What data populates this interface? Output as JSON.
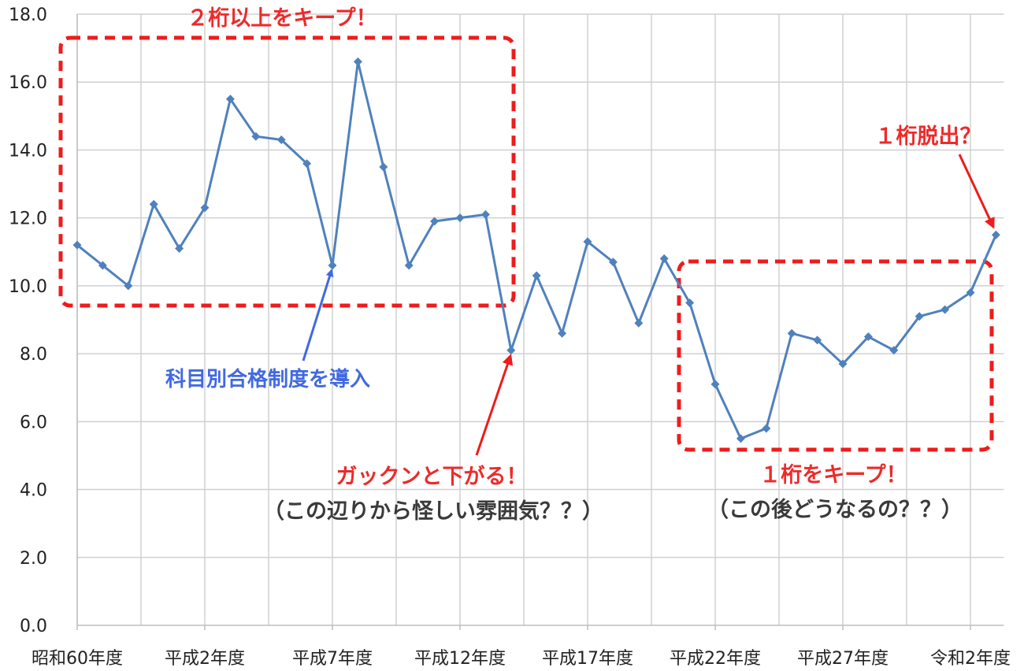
{
  "chart_data": {
    "type": "line",
    "x": [
      "昭和60年度",
      "昭和61年度",
      "昭和62年度",
      "昭和63年度",
      "平成元年度",
      "平成2年度",
      "平成3年度",
      "平成4年度",
      "平成5年度",
      "平成6年度",
      "平成7年度",
      "平成8年度",
      "平成9年度",
      "平成10年度",
      "平成11年度",
      "平成12年度",
      "平成13年度",
      "平成14年度",
      "平成15年度",
      "平成16年度",
      "平成17年度",
      "平成18年度",
      "平成19年度",
      "平成20年度",
      "平成21年度",
      "平成22年度",
      "平成23年度",
      "平成24年度",
      "平成25年度",
      "平成26年度",
      "平成27年度",
      "平成28年度",
      "平成29年度",
      "平成30年度",
      "令和元年度",
      "令和2年度",
      "令和3年度"
    ],
    "series": [
      {
        "color": "#4f81bd",
        "values": [
          11.2,
          10.6,
          10.0,
          12.4,
          11.1,
          12.3,
          15.5,
          14.4,
          14.3,
          13.6,
          10.6,
          16.6,
          13.5,
          10.6,
          11.9,
          12.0,
          12.1,
          8.1,
          10.3,
          8.6,
          11.3,
          10.7,
          8.9,
          10.8,
          9.5,
          7.1,
          5.5,
          5.8,
          8.6,
          8.4,
          7.7,
          8.5,
          8.1,
          9.1,
          9.3,
          9.8,
          11.5
        ]
      }
    ],
    "ylim": [
      0,
      18
    ],
    "y_ticks": [
      "0.0",
      "2.0",
      "4.0",
      "6.0",
      "8.0",
      "10.0",
      "12.0",
      "14.0",
      "16.0",
      "18.0"
    ],
    "x_tick_labels": [
      {
        "index": 0,
        "label": "昭和60年度"
      },
      {
        "index": 5,
        "label": "平成2年度"
      },
      {
        "index": 10,
        "label": "平成7年度"
      },
      {
        "index": 15,
        "label": "平成12年度"
      },
      {
        "index": 20,
        "label": "平成17年度"
      },
      {
        "index": 25,
        "label": "平成22年度"
      },
      {
        "index": 30,
        "label": "平成27年度"
      },
      {
        "index": 35,
        "label": "令和2年度"
      }
    ],
    "grid": true,
    "legend": "none",
    "annotations": [
      {
        "id": "box-top",
        "text": "２桁以上をキープ！",
        "color": "#ee2a2a"
      },
      {
        "id": "intro",
        "text": "科目別合格制度を導入",
        "color": "#4169e1"
      },
      {
        "id": "drop",
        "text": "ガックンと下がる！",
        "color": "#ee2a2a"
      },
      {
        "id": "drop-sub",
        "text": "（この辺りから怪しい雰囲気？？）",
        "color": "#3a3a3a"
      },
      {
        "id": "box-bottom",
        "text": "１桁をキープ！",
        "color": "#ee2a2a"
      },
      {
        "id": "box-bottom-sub",
        "text": "（この後どうなるの？？）",
        "color": "#3a3a3a"
      },
      {
        "id": "escape",
        "text": "１桁脱出？",
        "color": "#ee2a2a"
      }
    ]
  }
}
